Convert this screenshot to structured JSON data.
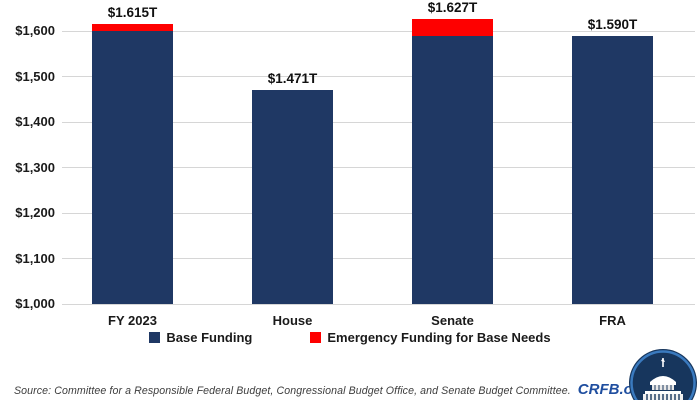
{
  "chart_data": {
    "type": "bar",
    "stacked": true,
    "title": "",
    "xlabel": "",
    "ylabel": "",
    "categories": [
      "FY 2023",
      "House",
      "Senate",
      "FRA"
    ],
    "series": [
      {
        "name": "Base Funding",
        "color": "#1F3864",
        "values": [
          1600,
          1471,
          1590,
          1590
        ]
      },
      {
        "name": "Emergency Funding for Base Needs",
        "color": "#FE0000",
        "values": [
          15,
          0,
          37,
          0
        ]
      }
    ],
    "total_labels": [
      "$1.615T",
      "$1.471T",
      "$1.627T",
      "$1.590T"
    ],
    "ylim": [
      1000,
      1650
    ],
    "ytick_labels": [
      "$1,000",
      "$1,100",
      "$1,200",
      "$1,300",
      "$1,400",
      "$1,500",
      "$1,600"
    ],
    "ytick_values": [
      1000,
      1100,
      1200,
      1300,
      1400,
      1500,
      1600
    ],
    "grid": true,
    "legend_position": "bottom"
  },
  "legend": {
    "items": [
      {
        "label": "Base Funding",
        "color": "#1F3864"
      },
      {
        "label": "Emergency Funding for Base Needs",
        "color": "#FE0000"
      }
    ]
  },
  "footer": {
    "source_text": "Source: Committee for a Responsible Federal Budget, Congressional Budget Office, and Senate Budget Committee.",
    "brand": "CRFB.org",
    "brand_color": "#1F4E9F"
  },
  "logo": {
    "name": "crfb-capitol-logo",
    "circle_color": "#17365D",
    "ring_color": "#3A7ABF"
  }
}
